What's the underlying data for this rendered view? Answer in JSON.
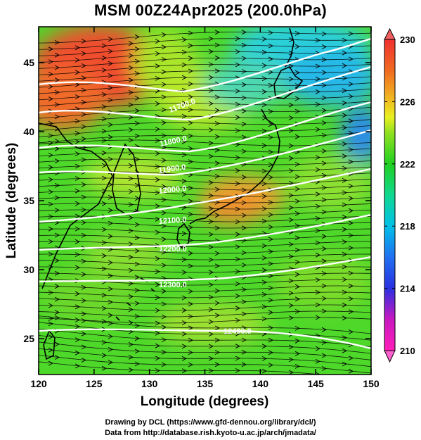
{
  "title": "MSM 00Z24Apr2025 (200.0hPa)",
  "map": {
    "xlabel": "Longitude (degrees)",
    "ylabel": "Latitude  (degrees)",
    "xlim": [
      120,
      150
    ],
    "ylim": [
      22.4,
      47.6
    ],
    "xticks": [
      120,
      125,
      130,
      135,
      140,
      145,
      150
    ],
    "yticks": [
      25,
      30,
      35,
      40,
      45
    ],
    "contour_field": "geopotential height (m)",
    "contours": [
      {
        "label": "11700.0",
        "level": 11700
      },
      {
        "label": "11800.0",
        "level": 11800
      },
      {
        "label": "11900.0",
        "level": 11900
      },
      {
        "label": "12000.0",
        "level": 12000
      },
      {
        "label": "12100.0",
        "level": 12100
      },
      {
        "label": "12200.0",
        "level": 12200
      },
      {
        "label": "12300.0",
        "level": 12300
      },
      {
        "label": "12400.0",
        "level": 12400
      }
    ],
    "shading_field": "temperature (K)",
    "streamlines": "wind",
    "colors": {
      "contour": "#ffffff",
      "coast": "#000000",
      "vector": "#000000"
    }
  },
  "colorbar": {
    "min": 210,
    "max": 230,
    "tick_labels": [
      "230",
      "226",
      "222",
      "218",
      "214",
      "210"
    ],
    "stops": [
      {
        "value": 210,
        "color": "#ff1fb8"
      },
      {
        "value": 212,
        "color": "#c818c0"
      },
      {
        "value": 214,
        "color": "#2a30e0"
      },
      {
        "value": 216,
        "color": "#2070f0"
      },
      {
        "value": 218,
        "color": "#00c0e8"
      },
      {
        "value": 220,
        "color": "#10d890"
      },
      {
        "value": 222,
        "color": "#20d020"
      },
      {
        "value": 224,
        "color": "#90e020"
      },
      {
        "value": 225,
        "color": "#e8f020"
      },
      {
        "value": 226,
        "color": "#f0c020"
      },
      {
        "value": 228,
        "color": "#f06a20"
      },
      {
        "value": 230,
        "color": "#f03030"
      }
    ]
  },
  "credits": {
    "line1": "Drawing by DCL (https://www.gfd-dennou.org/library/dcl/)",
    "line2": "Data from http://database.rish.kyoto-u.ac.jp/arch/jmadata/"
  }
}
